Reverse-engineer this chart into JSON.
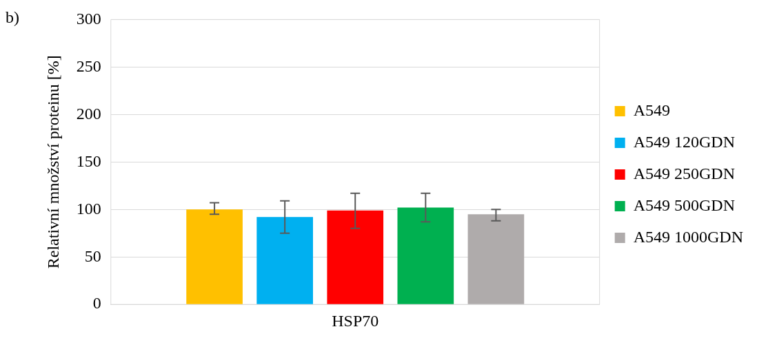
{
  "chart_data": {
    "type": "bar",
    "ylabel": "Relativní množství proteinu [%]",
    "annotations": [
      "b)"
    ],
    "categories": [
      "HSP70"
    ],
    "series": [
      {
        "name": "A549",
        "color": "#ffc000",
        "values": [
          100
        ],
        "errors": [
          [
            95,
            107
          ]
        ]
      },
      {
        "name": "A549 120GDN",
        "color": "#00b0f0",
        "values": [
          92
        ],
        "errors": [
          [
            75,
            109
          ]
        ]
      },
      {
        "name": "A549 250GDN",
        "color": "#ff0000",
        "values": [
          99
        ],
        "errors": [
          [
            80,
            117
          ]
        ]
      },
      {
        "name": "A549 500GDN",
        "color": "#00b050",
        "values": [
          102
        ],
        "errors": [
          [
            87,
            117
          ]
        ]
      },
      {
        "name": "A549 1000GDN",
        "color": "#afabab",
        "values": [
          95
        ],
        "errors": [
          [
            88,
            100
          ]
        ]
      }
    ],
    "ylim": [
      0,
      300
    ],
    "yticks": [
      0,
      50,
      100,
      150,
      200,
      250,
      300
    ],
    "grid": "y",
    "legend": "right"
  }
}
